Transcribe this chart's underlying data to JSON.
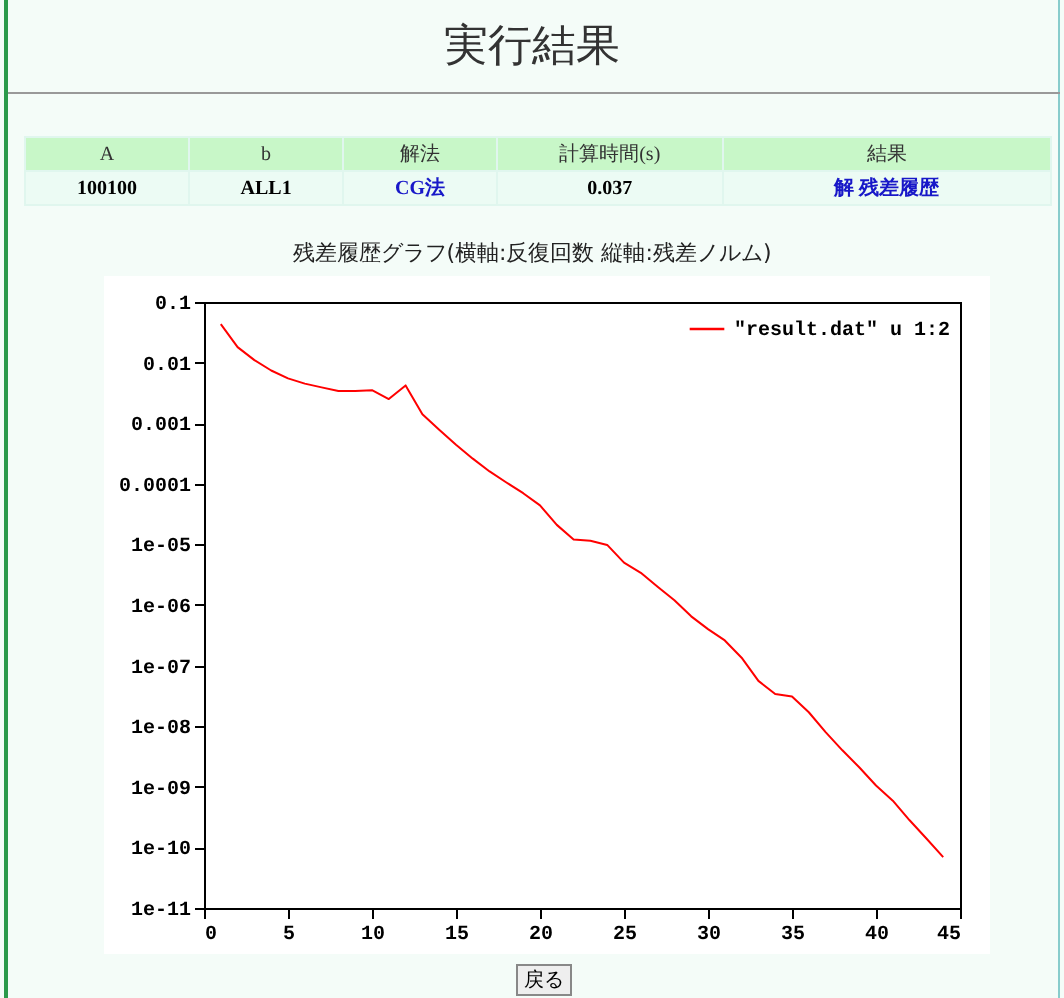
{
  "chart_data": {
    "type": "line",
    "title": "実行結果",
    "subtitle": "残差履歴グラフ(横軸:反復回数  縦軸:残差ノルム)",
    "annotations": [
      "A",
      "b",
      "解法",
      "計算時間(s)",
      "結果",
      "100100",
      "ALL1",
      "CG法",
      "0.037",
      "解  残差履歴",
      "戻る"
    ],
    "x": [
      1,
      2,
      3,
      4,
      5,
      6,
      7,
      8,
      9,
      10,
      11,
      12,
      13,
      14,
      15,
      16,
      17,
      18,
      19,
      20,
      21,
      22,
      23,
      24,
      25,
      26,
      27,
      28,
      29,
      30,
      31,
      32,
      33,
      34,
      35,
      36,
      37,
      38,
      39,
      40,
      41,
      42,
      43,
      44
    ],
    "series": [
      {
        "name": "\"result.dat\" u 1:2",
        "color": "#ff0000",
        "values": [
          0.043,
          0.018,
          0.011,
          0.0074,
          0.0055,
          0.0045,
          0.0039,
          0.0034,
          0.0034,
          0.0035,
          0.0025,
          0.0042,
          0.0014,
          0.00078,
          0.00044,
          0.00026,
          0.00016,
          0.000105,
          7e-05,
          4.4e-05,
          2.1e-05,
          1.2e-05,
          1.15e-05,
          9.8e-06,
          5e-06,
          3.4e-06,
          2e-06,
          1.2e-06,
          6.5e-07,
          4e-07,
          2.6e-07,
          1.35e-07,
          5.6e-08,
          3.4e-08,
          3.1e-08,
          1.7e-08,
          8e-09,
          4e-09,
          2.1e-09,
          1.05e-09,
          5.9e-10,
          2.8e-10,
          1.4e-10,
          6.9e-11
        ]
      }
    ],
    "log": "y",
    "xlim": [
      0,
      45
    ],
    "xticks": [
      0,
      5,
      10,
      15,
      20,
      25,
      30,
      35,
      40,
      45
    ],
    "ylim": [
      1e-11,
      0.1
    ],
    "yticks": [
      0.1,
      0.01,
      0.001,
      0.0001,
      {
        "value": 1e-05,
        "label": "1e-05"
      },
      {
        "value": 1e-06,
        "label": "1e-06"
      },
      {
        "value": 1e-07,
        "label": "1e-07"
      },
      {
        "value": 1e-08,
        "label": "1e-08"
      },
      {
        "value": 1e-09,
        "label": "1e-09"
      },
      {
        "value": 1e-10,
        "label": "1e-10"
      },
      {
        "value": 1e-11,
        "label": "1e-11"
      }
    ],
    "legend": "top right",
    "grid": false,
    "marker": "none",
    "line_style": "solid"
  }
}
